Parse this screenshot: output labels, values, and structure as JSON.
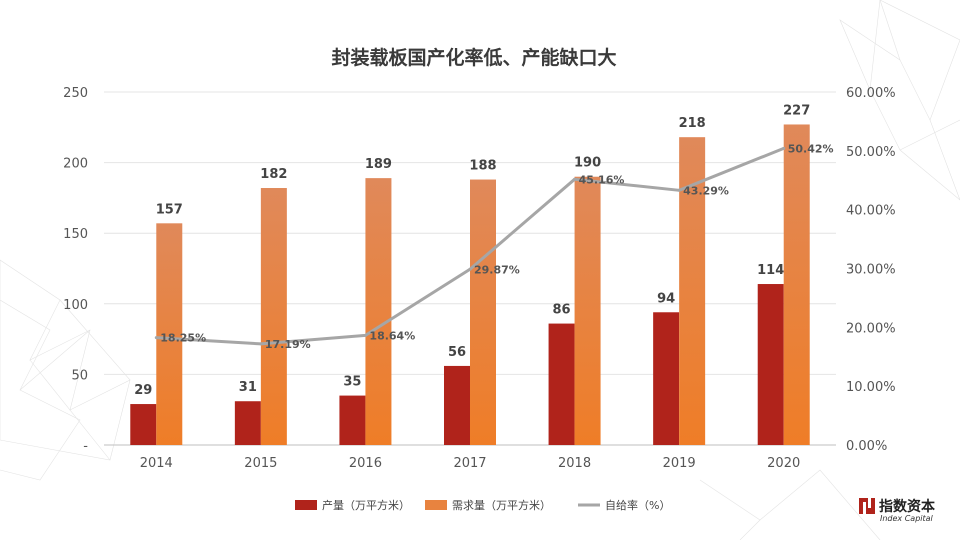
{
  "chart_data": {
    "type": "bar",
    "title": "封装载板国产化率低、产能缺口大",
    "categories": [
      "2014",
      "2015",
      "2016",
      "2017",
      "2018",
      "2019",
      "2020"
    ],
    "series": [
      {
        "name": "产量（万平方米）",
        "type": "bar",
        "axis": "left",
        "color": "#b0231b",
        "values": [
          29,
          31,
          35,
          56,
          86,
          94,
          114
        ]
      },
      {
        "name": "需求量（万平方米）",
        "type": "bar",
        "axis": "left",
        "color": "#e8833f",
        "values": [
          157,
          182,
          189,
          188,
          190,
          218,
          227
        ]
      },
      {
        "name": "自给率（%）",
        "type": "line",
        "axis": "right",
        "color": "#a6a6a6",
        "values": [
          18.25,
          17.19,
          18.64,
          29.87,
          45.16,
          43.29,
          50.42
        ]
      }
    ],
    "ylim": [
      0,
      250
    ],
    "y_ticks": [
      "-",
      "50",
      "100",
      "150",
      "200",
      "250"
    ],
    "y2lim": [
      0,
      60
    ],
    "y2_ticks": [
      "0.00%",
      "10.00%",
      "20.00%",
      "30.00%",
      "40.00%",
      "50.00%",
      "60.00%"
    ],
    "grid": true,
    "legend_position": "bottom"
  },
  "logo": {
    "cn": "指数资本",
    "en": "Index Capital"
  }
}
